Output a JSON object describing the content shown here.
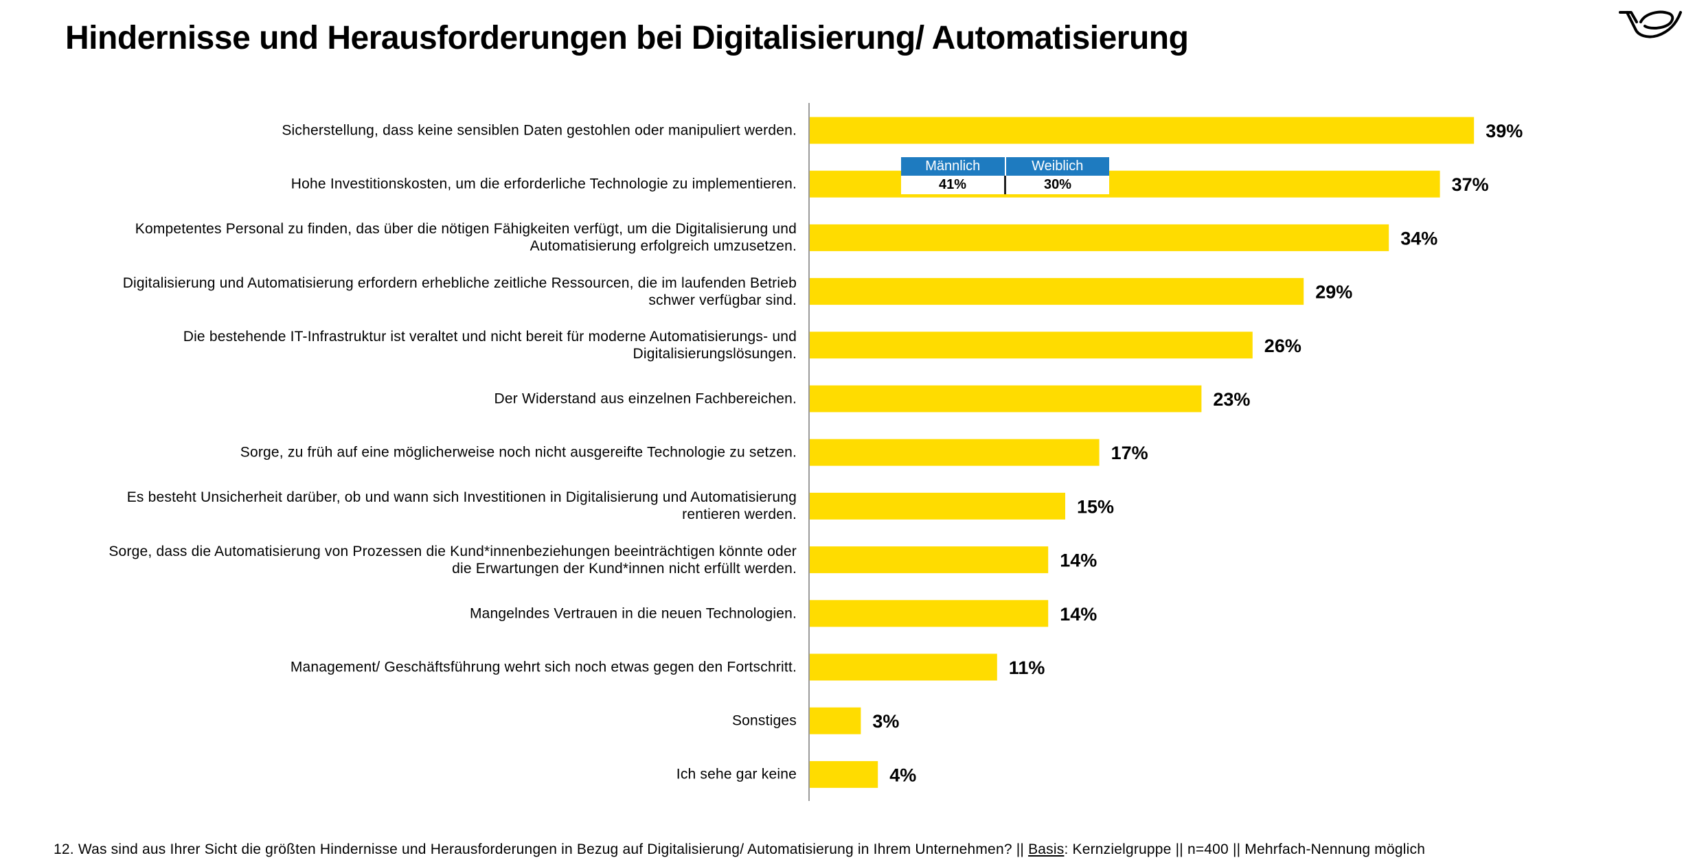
{
  "title": "Hindernisse und Herausforderungen bei Digitalisierung/ Automatisierung",
  "logo": {
    "icon": "posthorn-logo-icon"
  },
  "colors": {
    "bar": "#ffdc00",
    "inset_header": "#1e7bc0",
    "axis": "#9a9a9a"
  },
  "chart_data": {
    "type": "bar",
    "orientation": "horizontal",
    "categories": [
      "Sicherstellung, dass keine sensiblen Daten gestohlen oder manipuliert werden.",
      "Hohe Investitionskosten, um die erforderliche Technologie zu implementieren.",
      "Kompetentes Personal zu finden, das über die nötigen Fähigkeiten verfügt, um die Digitalisierung und Automatisierung erfolgreich umzusetzen.",
      "Digitalisierung und Automatisierung erfordern erhebliche zeitliche Ressourcen, die im laufenden Betrieb schwer verfügbar sind.",
      "Die bestehende IT-Infrastruktur ist veraltet und nicht bereit für moderne Automatisierungs- und Digitalisierungslösungen.",
      "Der Widerstand aus einzelnen Fachbereichen.",
      "Sorge, zu früh auf eine möglicherweise noch nicht ausgereifte Technologie zu setzen.",
      "Es besteht Unsicherheit darüber, ob und wann sich Investitionen in Digitalisierung und Automatisierung rentieren werden.",
      "Sorge, dass die Automatisierung von Prozessen die Kund*innenbeziehungen beeinträchtigen könnte oder die Erwartungen der Kund*innen nicht erfüllt werden.",
      "Mangelndes Vertrauen in die neuen Technologien.",
      "Management/ Geschäftsführung wehrt sich noch etwas gegen den Fortschritt.",
      "Sonstiges",
      "Ich sehe gar keine"
    ],
    "label_lines": [
      [
        "Sicherstellung, dass keine sensiblen Daten gestohlen oder manipuliert werden."
      ],
      [
        "Hohe Investitionskosten, um die erforderliche Technologie zu implementieren."
      ],
      [
        "Kompetentes Personal zu finden, das über die nötigen Fähigkeiten verfügt, um die Digitalisierung und",
        "Automatisierung erfolgreich umzusetzen."
      ],
      [
        "Digitalisierung und Automatisierung erfordern erhebliche zeitliche Ressourcen, die im laufenden Betrieb",
        "schwer verfügbar sind."
      ],
      [
        "Die bestehende IT-Infrastruktur ist veraltet und nicht bereit für moderne Automatisierungs- und",
        "Digitalisierungslösungen."
      ],
      [
        "Der Widerstand aus einzelnen Fachbereichen."
      ],
      [
        "Sorge, zu früh auf eine möglicherweise noch nicht ausgereifte Technologie zu setzen."
      ],
      [
        "Es besteht Unsicherheit darüber, ob und wann sich Investitionen in Digitalisierung und Automatisierung",
        "rentieren werden."
      ],
      [
        "Sorge, dass die Automatisierung von Prozessen die Kund*innenbeziehungen beeinträchtigen könnte oder",
        "die Erwartungen der Kund*innen nicht erfüllt werden."
      ],
      [
        "Mangelndes Vertrauen in die neuen Technologien."
      ],
      [
        "Management/ Geschäftsführung wehrt sich noch etwas gegen den Fortschritt."
      ],
      [
        "Sonstiges"
      ],
      [
        "Ich sehe gar keine"
      ]
    ],
    "values": [
      39,
      37,
      34,
      29,
      26,
      23,
      17,
      15,
      14,
      14,
      11,
      3,
      4
    ],
    "value_labels": [
      "39%",
      "37%",
      "34%",
      "29%",
      "26%",
      "23%",
      "17%",
      "15%",
      "14%",
      "14%",
      "11%",
      "3%",
      "4%"
    ],
    "value_unit": "%",
    "xlim": [
      0,
      40
    ],
    "grid": false,
    "legend": "none",
    "annotations": [
      {
        "category": "Hohe Investitionskosten, um die erforderliche Technologie zu implementieren.",
        "headers": [
          "Männlich",
          "Weiblich"
        ],
        "values": [
          "41%",
          "30%"
        ]
      }
    ]
  },
  "footnote": {
    "prefix": "12. Was sind aus Ihrer Sicht die größten Hindernisse und Herausforderungen in Bezug auf Digitalisierung/ Automatisierung in Ihrem Unternehmen? || ",
    "basis_label": "Basis",
    "suffix": ": Kernzielgruppe || n=400 || Mehrfach-Nennung möglich"
  }
}
